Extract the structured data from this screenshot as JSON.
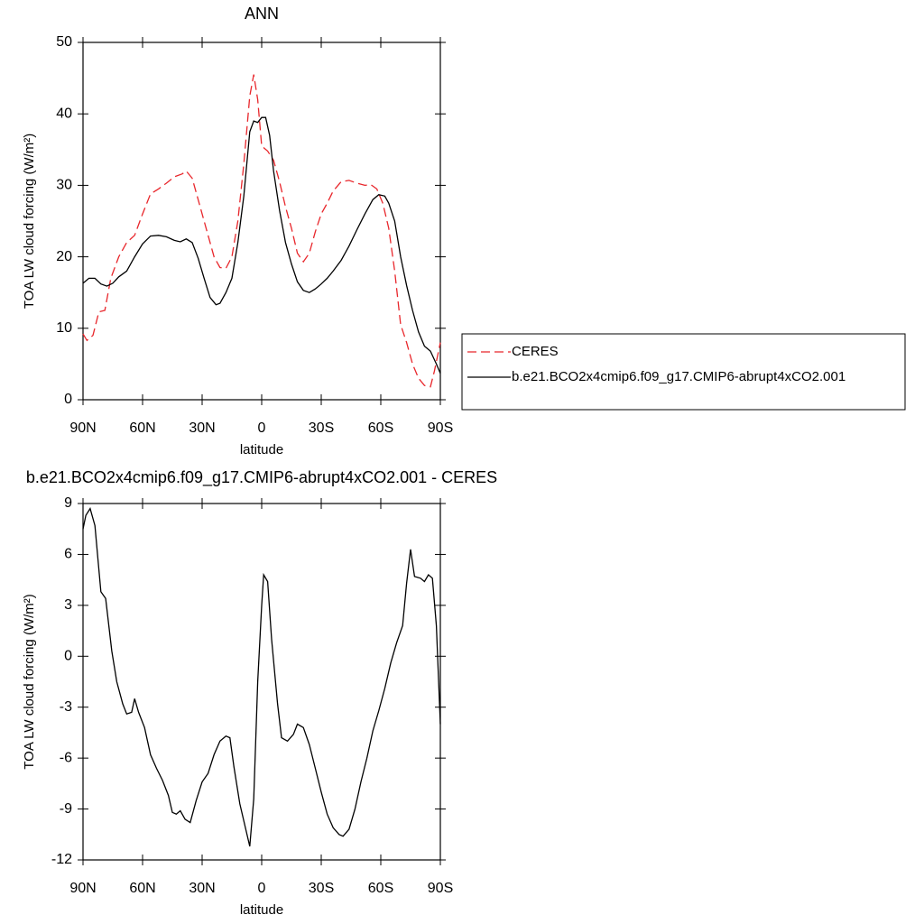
{
  "chart_data": [
    {
      "type": "line",
      "title": "ANN",
      "xlabel": "latitude",
      "ylabel": "TOA LW cloud forcing (W/m²)",
      "xlim": [
        90,
        -90
      ],
      "ylim": [
        0,
        50
      ],
      "xticks": [
        {
          "value": 90,
          "label": "90N"
        },
        {
          "value": 60,
          "label": "60N"
        },
        {
          "value": 30,
          "label": "30N"
        },
        0,
        {
          "value": -30,
          "label": "30S"
        },
        {
          "value": -60,
          "label": "60S"
        },
        {
          "value": -90,
          "label": "90S"
        }
      ],
      "yticks": [
        0,
        10,
        20,
        30,
        40,
        50
      ],
      "legend": "right",
      "series": [
        {
          "name": "CERES",
          "color": "#e8262b",
          "dash": true,
          "x": [
            90,
            88,
            85,
            82,
            79,
            76,
            72,
            68,
            64,
            60,
            56,
            52,
            48,
            44,
            40,
            38,
            35,
            32,
            28,
            24,
            21,
            18,
            15,
            12,
            9,
            6,
            4,
            2,
            0,
            -3,
            -6,
            -9,
            -12,
            -15,
            -18,
            -21,
            -24,
            -27,
            -30,
            -33,
            -36,
            -40,
            -44,
            -48,
            -52,
            -55,
            -58,
            -61,
            -64,
            -67,
            -70,
            -73,
            -76,
            -79,
            -82,
            -85,
            -87,
            -90
          ],
          "values": [
            9.2,
            8.3,
            9,
            12.3,
            12.5,
            17,
            20,
            22,
            23,
            26,
            28.8,
            29.5,
            30.3,
            31.2,
            31.6,
            32,
            31,
            28,
            24,
            20,
            18.5,
            18.4,
            20,
            25,
            33,
            42.5,
            45.5,
            42,
            35.5,
            34.8,
            33.5,
            30.5,
            27,
            24,
            20.5,
            19.3,
            20.5,
            23.5,
            26,
            27.5,
            29.2,
            30.5,
            30.7,
            30.3,
            30,
            30.1,
            29.5,
            27.5,
            24,
            18,
            10.5,
            8,
            5,
            3,
            2,
            1.8,
            4,
            8
          ]
        },
        {
          "name": "b.e21.BCO2x4cmip6.f09_g17.CMIP6-abrupt4xCO2.001",
          "color": "#000000",
          "dash": false,
          "x": [
            90,
            87,
            84,
            81,
            78,
            75,
            72,
            68,
            64,
            60,
            56,
            52,
            48,
            44,
            41,
            38,
            35,
            32,
            29,
            26,
            23,
            21,
            18,
            15,
            12,
            9,
            6,
            4,
            2,
            0,
            -2,
            -4,
            -6,
            -9,
            -12,
            -15,
            -18,
            -21,
            -24,
            -27,
            -30,
            -33,
            -36,
            -40,
            -44,
            -48,
            -52,
            -56,
            -59,
            -62,
            -64,
            -67,
            -70,
            -73,
            -76,
            -79,
            -82,
            -85,
            -88,
            -90
          ],
          "values": [
            16.3,
            17,
            17,
            16.2,
            15.9,
            16.3,
            17.2,
            18,
            20,
            21.8,
            22.9,
            23,
            22.8,
            22.3,
            22.1,
            22.5,
            22,
            19.8,
            17,
            14.3,
            13.3,
            13.5,
            15,
            17,
            22,
            28.5,
            37.5,
            39,
            38.8,
            39.5,
            39.5,
            37,
            32,
            26.5,
            22,
            19,
            16.5,
            15.3,
            15,
            15.5,
            16.2,
            17,
            18,
            19.5,
            21.5,
            23.8,
            26,
            28,
            28.7,
            28.5,
            27.5,
            25,
            20,
            16,
            12.5,
            9.5,
            7.5,
            6.8,
            5,
            3.7
          ]
        }
      ]
    },
    {
      "type": "line",
      "title": "b.e21.BCO2x4cmip6.f09_g17.CMIP6-abrupt4xCO2.001 - CERES",
      "xlabel": "latitude",
      "ylabel": "TOA LW cloud forcing (W/m²)",
      "xlim": [
        90,
        -90
      ],
      "ylim": [
        -12,
        9
      ],
      "xticks": [
        {
          "value": 90,
          "label": "90N"
        },
        {
          "value": 60,
          "label": "60N"
        },
        {
          "value": 30,
          "label": "30N"
        },
        0,
        {
          "value": -30,
          "label": "30S"
        },
        {
          "value": -60,
          "label": "60S"
        },
        {
          "value": -90,
          "label": "90S"
        }
      ],
      "yticks": [
        -12,
        -9,
        -6,
        -3,
        0,
        3,
        6,
        9
      ],
      "series": [
        {
          "color": "#000000",
          "x": [
            90,
            88.6,
            86.4,
            84,
            81,
            78.6,
            75.5,
            73,
            70,
            68,
            65.5,
            64,
            62,
            59,
            56,
            53,
            50,
            47,
            45,
            43,
            41,
            38.6,
            36,
            33,
            30,
            27,
            24,
            21,
            18,
            16,
            14,
            11,
            8,
            6,
            4,
            2,
            0,
            -1,
            -3,
            -5,
            -8,
            -10,
            -13,
            -16,
            -18,
            -21,
            -24,
            -27,
            -30,
            -33,
            -36,
            -39,
            -41,
            -44,
            -47,
            -50,
            -53,
            -56,
            -59,
            -62,
            -65,
            -68,
            -71,
            -73,
            -75,
            -77,
            -80,
            -82,
            -84,
            -86,
            -88,
            -90
          ],
          "values": [
            7.5,
            8.3,
            8.7,
            7.7,
            3.8,
            3.4,
            0.3,
            -1.5,
            -2.8,
            -3.4,
            -3.3,
            -2.5,
            -3.3,
            -4.2,
            -5.8,
            -6.6,
            -7.3,
            -8.2,
            -9.2,
            -9.3,
            -9.1,
            -9.6,
            -9.8,
            -8.5,
            -7.4,
            -6.9,
            -5.8,
            -5,
            -4.7,
            -4.8,
            -6.5,
            -8.7,
            -10.2,
            -11.2,
            -8.4,
            -1.5,
            3,
            4.8,
            4.4,
            1,
            -2.8,
            -4.8,
            -5,
            -4.6,
            -4,
            -4.2,
            -5.2,
            -6.6,
            -8,
            -9.3,
            -10.1,
            -10.5,
            -10.6,
            -10.2,
            -9,
            -7.4,
            -6,
            -4.4,
            -3.2,
            -1.9,
            -0.4,
            0.8,
            1.8,
            4.3,
            6.3,
            4.7,
            4.6,
            4.4,
            4.8,
            4.6,
            1.8,
            -4
          ]
        }
      ]
    }
  ]
}
